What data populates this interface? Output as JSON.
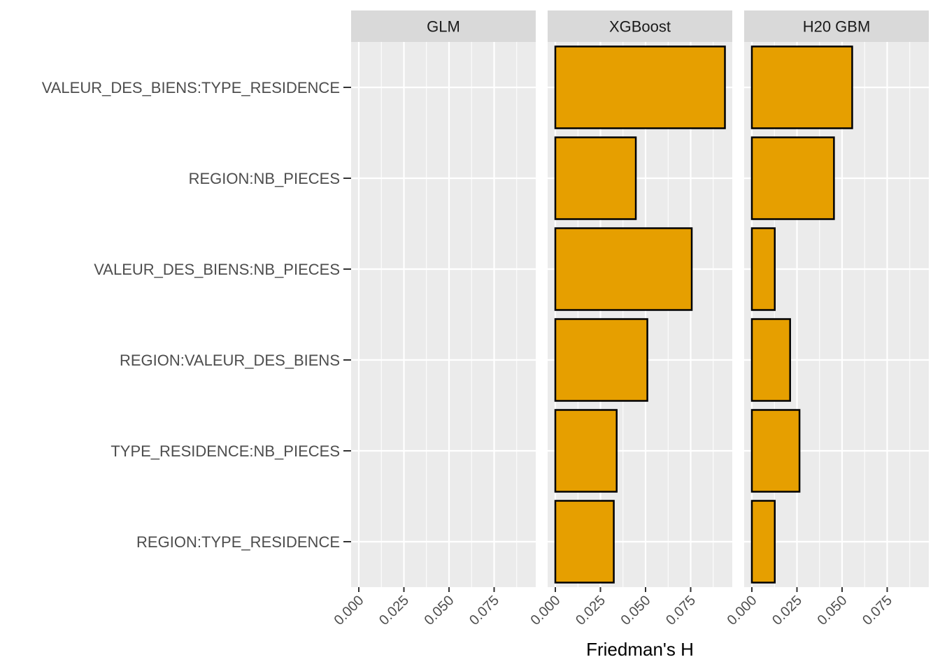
{
  "chart_data": {
    "type": "bar",
    "orientation": "horizontal",
    "xlabel": "Friedman's H",
    "ylabel": "",
    "xlim": [
      0,
      0.1
    ],
    "x_ticks": [
      "0.000",
      "0.025",
      "0.050",
      "0.075"
    ],
    "x_tick_values": [
      0,
      0.025,
      0.05,
      0.075
    ],
    "grid": true,
    "legend": "none",
    "bar_color": "#E69F00",
    "bar_outline": "#000000",
    "panel_background": "#EBEBEB",
    "strip_background": "#D9D9D9",
    "categories": [
      "VALEUR_DES_BIENS:TYPE_RESIDENCE",
      "REGION:NB_PIECES",
      "VALEUR_DES_BIENS:NB_PIECES",
      "REGION:VALEUR_DES_BIENS",
      "TYPE_RESIDENCE:NB_PIECES",
      "REGION:TYPE_RESIDENCE"
    ],
    "series": [
      {
        "name": "GLM",
        "values": [
          0,
          0,
          0,
          0,
          0,
          0
        ]
      },
      {
        "name": "XGBoost",
        "values": [
          0.094,
          0.0446,
          0.0756,
          0.051,
          0.034,
          0.0324
        ]
      },
      {
        "name": "H20 GBM",
        "values": [
          0.0556,
          0.0455,
          0.0127,
          0.0212,
          0.0264,
          0.0127
        ]
      }
    ]
  }
}
